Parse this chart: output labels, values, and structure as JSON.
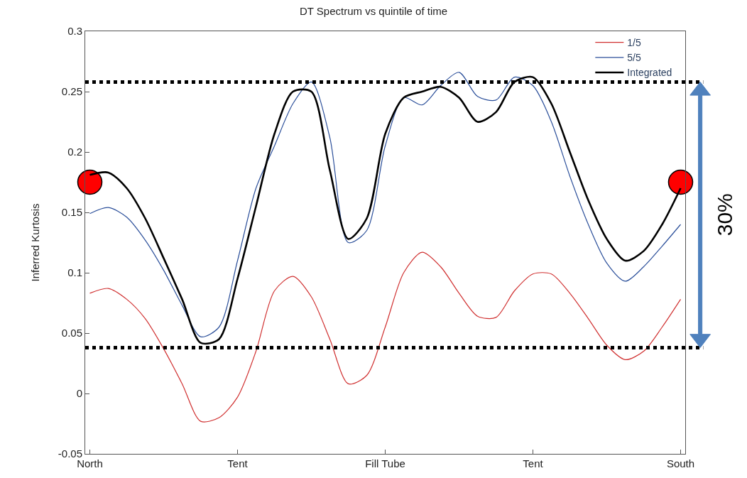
{
  "chart_data": {
    "type": "line",
    "title": "DT Spectrum vs quintile of time",
    "ylabel": "Inferred Kurtosis",
    "categories": [
      "North",
      null,
      null,
      null,
      null,
      null,
      null,
      null,
      "Tent",
      null,
      null,
      null,
      null,
      null,
      null,
      null,
      "Fill Tube",
      null,
      null,
      null,
      null,
      null,
      null,
      null,
      "Tent",
      null,
      null,
      null,
      null,
      null,
      null,
      null,
      "South"
    ],
    "ylim": [
      -0.05,
      0.3
    ],
    "yticks": [
      -0.05,
      0,
      0.05,
      0.1,
      0.15,
      0.2,
      0.25,
      0.3
    ],
    "legend": "top right",
    "marker": "none",
    "series": [
      {
        "name": "1/5",
        "color": "#d03030",
        "values": [
          0.083,
          0.087,
          0.078,
          0.062,
          0.037,
          0.008,
          -0.023,
          -0.02,
          -0.003,
          0.035,
          0.085,
          0.097,
          0.08,
          0.045,
          0.008,
          0.015,
          0.055,
          0.1,
          0.117,
          0.105,
          0.083,
          0.064,
          0.063,
          0.085,
          0.099,
          0.099,
          0.083,
          0.062,
          0.04,
          0.028,
          0.035,
          0.055,
          0.078
        ]
      },
      {
        "name": "5/5",
        "color": "#2b4f9a",
        "values": [
          0.149,
          0.154,
          0.146,
          0.127,
          0.102,
          0.073,
          0.047,
          0.055,
          0.11,
          0.17,
          0.205,
          0.24,
          0.258,
          0.212,
          0.125,
          0.135,
          0.205,
          0.245,
          0.239,
          0.255,
          0.266,
          0.246,
          0.243,
          0.262,
          0.255,
          0.225,
          0.18,
          0.14,
          0.108,
          0.093,
          0.105,
          0.122,
          0.14
        ]
      },
      {
        "name": "Integrated",
        "color": "#000000",
        "values": [
          0.181,
          0.183,
          0.17,
          0.145,
          0.112,
          0.078,
          0.042,
          0.045,
          0.095,
          0.155,
          0.215,
          0.25,
          0.25,
          0.185,
          0.128,
          0.145,
          0.215,
          0.245,
          0.25,
          0.254,
          0.245,
          0.225,
          0.233,
          0.258,
          0.262,
          0.24,
          0.2,
          0.16,
          0.128,
          0.11,
          0.118,
          0.14,
          0.17
        ]
      },
      {
        "type": "scatter",
        "color": "#ff0000",
        "marker": "circle",
        "values": [
          0.175,
          null,
          null,
          null,
          null,
          null,
          null,
          null,
          null,
          null,
          null,
          null,
          null,
          null,
          null,
          null,
          null,
          null,
          null,
          null,
          null,
          null,
          null,
          null,
          null,
          null,
          null,
          null,
          null,
          null,
          null,
          null,
          0.175
        ]
      }
    ],
    "ref_lines": [
      {
        "axis": "y",
        "value": 0.258,
        "color": "#000000",
        "line_style": "dotted"
      },
      {
        "axis": "y",
        "value": 0.038,
        "color": "#000000",
        "line_style": "dotted"
      }
    ],
    "annotations": [
      "30%"
    ]
  }
}
